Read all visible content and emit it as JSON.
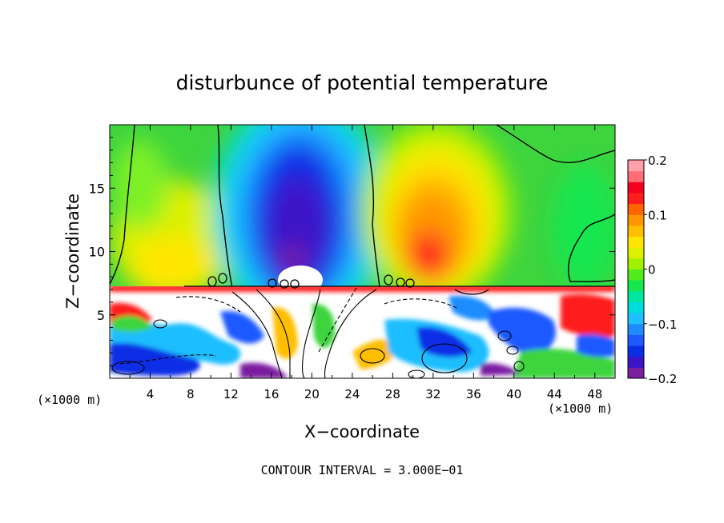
{
  "chart_data": {
    "type": "heatmap",
    "title": "disturbunce of potential temperature",
    "xlabel": "X−coordinate",
    "ylabel": "Z−coordinate",
    "x_unit": "(×1000 m)",
    "z_unit": "(×1000 m)",
    "xlim": [
      0,
      50
    ],
    "ylim": [
      0,
      20
    ],
    "x_ticks": [
      4,
      8,
      12,
      16,
      20,
      24,
      28,
      32,
      36,
      40,
      44,
      48
    ],
    "y_ticks": [
      5,
      10,
      15
    ],
    "colorbar": {
      "range": [
        -0.2,
        0.2
      ],
      "tick_values": [
        0.2,
        0.1,
        0,
        -0.1,
        -0.2
      ],
      "tick_labels": [
        "0.2",
        "0.1",
        "0",
        "−0.1",
        "−0.2"
      ],
      "colors": [
        "#7a1fa0",
        "#3c14c8",
        "#0a2de6",
        "#1e5aff",
        "#1e8cff",
        "#1ebeff",
        "#00dcdc",
        "#00e6a0",
        "#14e650",
        "#50eb1e",
        "#a0f000",
        "#dcf000",
        "#ffe600",
        "#ffbe00",
        "#ff9600",
        "#ff6400",
        "#ff1e1e",
        "#f5001e",
        "#ff6e78",
        "#ffa0aa"
      ]
    },
    "fields": [
      {
        "name": "warm-top-left",
        "x": 7,
        "z": 10,
        "value": 0.08
      },
      {
        "name": "cold-plume",
        "x": 19,
        "z": 13,
        "value": -0.17
      },
      {
        "name": "warm-plume",
        "x": 32,
        "z": 11,
        "value": 0.13
      },
      {
        "name": "neutral-upper-right",
        "x": 46,
        "z": 13,
        "value": 0.0
      },
      {
        "name": "boundary-layer",
        "x": 25,
        "z": 3.5,
        "value": 0.2
      }
    ],
    "grid": false,
    "legend": "right"
  },
  "footer": {
    "contour_interval": "CONTOUR INTERVAL = 3.000E−01"
  }
}
